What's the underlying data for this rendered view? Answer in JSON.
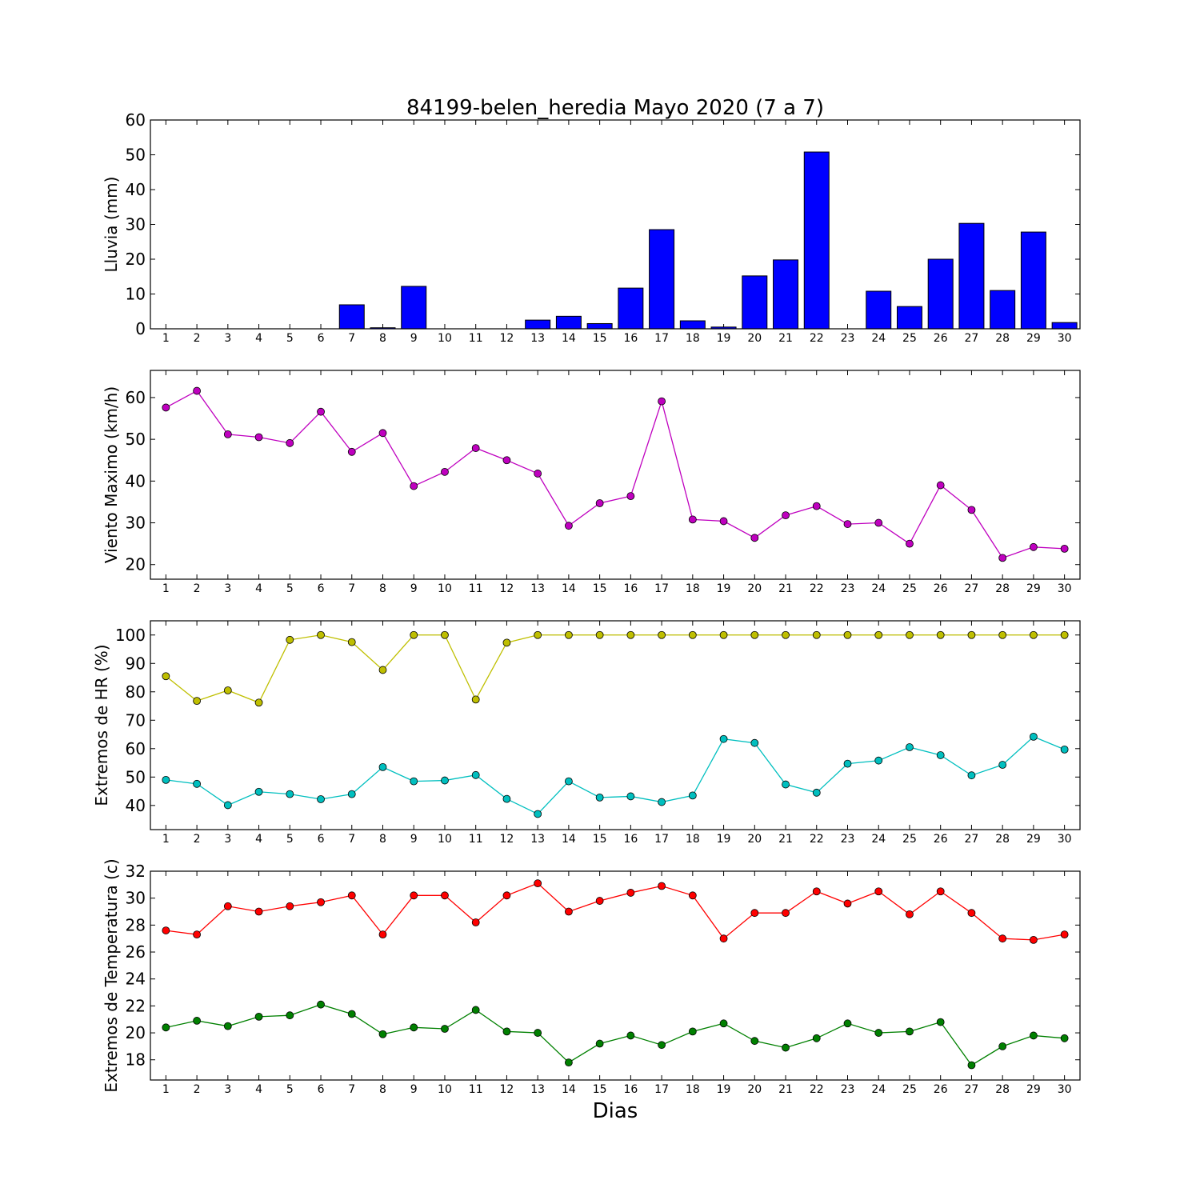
{
  "chart_data": [
    {
      "type": "bar",
      "title": "84199-belen_heredia Mayo 2020  (7 a 7)",
      "xlabel": "",
      "ylabel": "Lluvia (mm)",
      "ylim": [
        0,
        60
      ],
      "yticks": [
        0,
        10,
        20,
        30,
        40,
        50,
        60
      ],
      "categories": [
        "1",
        "2",
        "3",
        "4",
        "5",
        "6",
        "7",
        "8",
        "9",
        "10",
        "11",
        "12",
        "13",
        "14",
        "15",
        "16",
        "17",
        "18",
        "19",
        "20",
        "21",
        "22",
        "23",
        "24",
        "25",
        "26",
        "27",
        "28",
        "29",
        "30"
      ],
      "series": [
        {
          "color": "#0000ff",
          "values": [
            0,
            0,
            0,
            0,
            0,
            0,
            6.9,
            0.3,
            12.2,
            0,
            0,
            0,
            2.5,
            3.6,
            1.5,
            11.7,
            28.5,
            2.3,
            0.5,
            15.2,
            19.8,
            50.8,
            0,
            10.8,
            6.4,
            20.0,
            30.3,
            11.0,
            27.8,
            1.8
          ]
        }
      ]
    },
    {
      "type": "line",
      "title": "",
      "xlabel": "",
      "ylabel": "Viento Maximo (km/h)",
      "ylim": [
        16.5,
        66.5
      ],
      "yticks": [
        20,
        30,
        40,
        50,
        60
      ],
      "categories": [
        "1",
        "2",
        "3",
        "4",
        "5",
        "6",
        "7",
        "8",
        "9",
        "10",
        "11",
        "12",
        "13",
        "14",
        "15",
        "16",
        "17",
        "18",
        "19",
        "20",
        "21",
        "22",
        "23",
        "24",
        "25",
        "26",
        "27",
        "28",
        "29",
        "30"
      ],
      "series": [
        {
          "color": "#bf00bf",
          "values": [
            57.6,
            61.6,
            51.2,
            50.5,
            49.1,
            56.6,
            47.0,
            51.5,
            38.8,
            42.2,
            47.9,
            45.0,
            41.8,
            29.3,
            34.7,
            36.4,
            59.1,
            30.8,
            30.4,
            26.4,
            31.8,
            34.0,
            29.7,
            30.0,
            25.0,
            39.0,
            33.1,
            21.6,
            24.2,
            23.8
          ]
        }
      ]
    },
    {
      "type": "line",
      "title": "",
      "xlabel": "",
      "ylabel": "Extremos de HR (%)",
      "ylim": [
        31.5,
        105
      ],
      "yticks": [
        40,
        50,
        60,
        70,
        80,
        90,
        100
      ],
      "categories": [
        "1",
        "2",
        "3",
        "4",
        "5",
        "6",
        "7",
        "8",
        "9",
        "10",
        "11",
        "12",
        "13",
        "14",
        "15",
        "16",
        "17",
        "18",
        "19",
        "20",
        "21",
        "22",
        "23",
        "24",
        "25",
        "26",
        "27",
        "28",
        "29",
        "30"
      ],
      "series": [
        {
          "color": "#bfbf00",
          "values": [
            85.5,
            76.8,
            80.5,
            76.2,
            98.3,
            100,
            97.5,
            87.7,
            100,
            100,
            77.3,
            97.3,
            100,
            100,
            100,
            100,
            100,
            100,
            100,
            100,
            100,
            100,
            100,
            100,
            100,
            100,
            100,
            100,
            100,
            100
          ]
        },
        {
          "color": "#00bfbf",
          "values": [
            49.0,
            47.6,
            40.1,
            44.8,
            44.0,
            42.2,
            44.0,
            53.5,
            48.5,
            48.8,
            50.7,
            42.3,
            37.0,
            48.5,
            42.8,
            43.2,
            41.2,
            43.5,
            63.4,
            62.0,
            47.4,
            44.5,
            54.7,
            55.8,
            60.5,
            57.7,
            50.6,
            54.3,
            64.2,
            59.7
          ]
        }
      ]
    },
    {
      "type": "line",
      "title": "",
      "xlabel": "Dias",
      "ylabel": "Extremos de Temperatura (c)",
      "ylim": [
        16.5,
        32
      ],
      "yticks": [
        18,
        20,
        22,
        24,
        26,
        28,
        30,
        32
      ],
      "categories": [
        "1",
        "2",
        "3",
        "4",
        "5",
        "6",
        "7",
        "8",
        "9",
        "10",
        "11",
        "12",
        "13",
        "14",
        "15",
        "16",
        "17",
        "18",
        "19",
        "20",
        "21",
        "22",
        "23",
        "24",
        "25",
        "26",
        "27",
        "28",
        "29",
        "30"
      ],
      "series": [
        {
          "color": "#ff0000",
          "values": [
            27.6,
            27.3,
            29.4,
            29.0,
            29.4,
            29.7,
            30.2,
            27.3,
            30.2,
            30.2,
            28.2,
            30.2,
            31.1,
            29.0,
            29.8,
            30.4,
            30.9,
            30.2,
            27.0,
            28.9,
            28.9,
            30.5,
            29.6,
            30.5,
            28.8,
            30.5,
            28.9,
            27.0,
            26.9,
            27.3
          ]
        },
        {
          "color": "#008000",
          "values": [
            20.4,
            20.9,
            20.5,
            21.2,
            21.3,
            22.1,
            21.4,
            19.9,
            20.4,
            20.3,
            21.7,
            20.1,
            20.0,
            17.8,
            19.2,
            19.8,
            19.1,
            20.1,
            20.7,
            19.4,
            18.9,
            19.6,
            20.7,
            20.0,
            20.1,
            20.8,
            17.6,
            19.0,
            19.8,
            19.6
          ]
        }
      ]
    }
  ]
}
